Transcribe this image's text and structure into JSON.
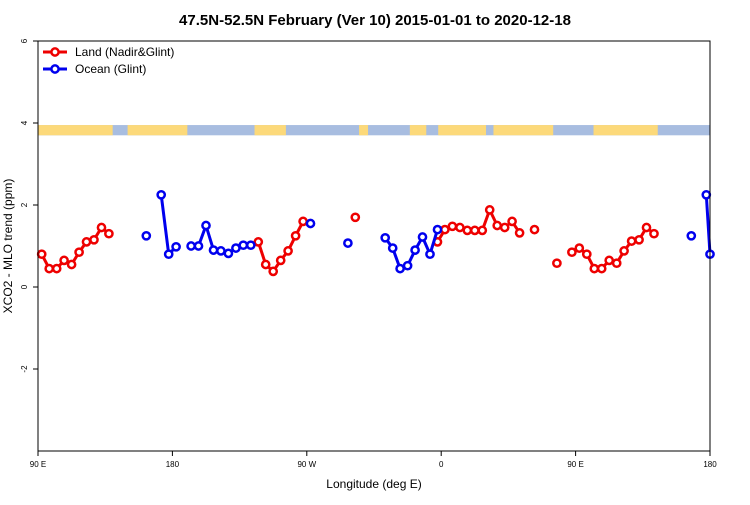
{
  "title": "47.5N-52.5N February (Ver 10)   2015-01-01 to 2020-12-18",
  "legend": [
    {
      "label": "Land (Nadir&Glint)",
      "color": "#ee0000"
    },
    {
      "label": "Ocean (Glint)",
      "color": "#0000ee"
    }
  ],
  "colors": {
    "land_band": "#fcd97a",
    "ocean_band": "#a8bde0"
  },
  "chart_data": {
    "type": "line",
    "title": "47.5N-52.5N February (Ver 10)   2015-01-01 to 2020-12-18",
    "xlabel": "Longitude (deg E)",
    "ylabel": "XCO2 - MLO trend (ppm)",
    "xlim": [
      90,
      540
    ],
    "ylim": [
      -4,
      6
    ],
    "grid": false,
    "legend_position": "top-left",
    "x_ticks": [
      {
        "value": 90,
        "label": "90 E"
      },
      {
        "value": 180,
        "label": "180"
      },
      {
        "value": 270,
        "label": "90 W"
      },
      {
        "value": 360,
        "label": "0"
      },
      {
        "value": 450,
        "label": "90 E"
      },
      {
        "value": 540,
        "label": "180"
      }
    ],
    "y_ticks": [
      {
        "value": -2,
        "label": "-2"
      },
      {
        "value": 0,
        "label": "0"
      },
      {
        "value": 2,
        "label": "2"
      },
      {
        "value": 4,
        "label": "4"
      },
      {
        "value": 6,
        "label": "6"
      }
    ],
    "series": [
      {
        "name": "Land (Nadir&Glint)",
        "color": "#ee0000",
        "segments": [
          [
            [
              92.5,
              0.8
            ],
            [
              97.5,
              0.45
            ],
            [
              102.5,
              0.45
            ],
            [
              107.5,
              0.65
            ],
            [
              112.5,
              0.55
            ],
            [
              117.5,
              0.85
            ],
            [
              122.5,
              1.1
            ],
            [
              127.5,
              1.15
            ],
            [
              132.5,
              1.45
            ],
            [
              137.5,
              1.3
            ]
          ],
          [
            [
              237.5,
              1.1
            ],
            [
              242.5,
              0.55
            ],
            [
              247.5,
              0.38
            ],
            [
              252.5,
              0.65
            ],
            [
              257.5,
              0.88
            ],
            [
              262.5,
              1.25
            ],
            [
              267.5,
              1.6
            ]
          ],
          [
            [
              302.5,
              1.7
            ]
          ],
          [
            [
              357.5,
              1.1
            ],
            [
              362.5,
              1.4
            ],
            [
              367.5,
              1.48
            ],
            [
              372.5,
              1.45
            ],
            [
              377.5,
              1.38
            ],
            [
              382.5,
              1.38
            ],
            [
              387.5,
              1.38
            ],
            [
              392.5,
              1.88
            ],
            [
              397.5,
              1.5
            ],
            [
              402.5,
              1.45
            ],
            [
              407.5,
              1.6
            ],
            [
              412.5,
              1.32
            ]
          ],
          [
            [
              422.5,
              1.4
            ]
          ],
          [
            [
              437.5,
              0.58
            ]
          ],
          [
            [
              447.5,
              0.85
            ],
            [
              452.5,
              0.95
            ],
            [
              457.5,
              0.8
            ],
            [
              462.5,
              0.45
            ],
            [
              467.5,
              0.45
            ],
            [
              472.5,
              0.65
            ],
            [
              477.5,
              0.58
            ],
            [
              482.5,
              0.88
            ],
            [
              487.5,
              1.12
            ],
            [
              492.5,
              1.15
            ],
            [
              497.5,
              1.45
            ],
            [
              502.5,
              1.3
            ]
          ]
        ]
      },
      {
        "name": "Ocean (Glint)",
        "color": "#0000ee",
        "segments": [
          [
            [
              162.5,
              1.25
            ]
          ],
          [
            [
              172.5,
              2.25
            ],
            [
              177.5,
              0.8
            ],
            [
              182.5,
              0.98
            ]
          ],
          [
            [
              192.5,
              1.0
            ],
            [
              197.5,
              1.0
            ],
            [
              202.5,
              1.5
            ],
            [
              207.5,
              0.9
            ],
            [
              212.5,
              0.88
            ],
            [
              217.5,
              0.82
            ],
            [
              222.5,
              0.95
            ],
            [
              227.5,
              1.02
            ],
            [
              232.5,
              1.02
            ]
          ],
          [
            [
              272.5,
              1.55
            ]
          ],
          [
            [
              297.5,
              1.07
            ]
          ],
          [
            [
              322.5,
              1.2
            ],
            [
              327.5,
              0.95
            ],
            [
              332.5,
              0.45
            ],
            [
              337.5,
              0.52
            ],
            [
              342.5,
              0.9
            ],
            [
              347.5,
              1.22
            ],
            [
              352.5,
              0.8
            ],
            [
              357.5,
              1.4
            ]
          ],
          [
            [
              527.5,
              1.25
            ]
          ],
          [
            [
              537.5,
              2.25
            ],
            [
              540,
              0.8
            ]
          ]
        ]
      }
    ],
    "surface_band": {
      "y_range": [
        3.7,
        3.95
      ],
      "land_spans": [
        [
          90,
          140
        ],
        [
          150,
          190
        ],
        [
          235,
          256
        ],
        [
          305,
          311
        ],
        [
          339,
          350
        ],
        [
          358,
          390
        ],
        [
          395,
          435
        ],
        [
          462,
          505
        ]
      ]
    }
  }
}
